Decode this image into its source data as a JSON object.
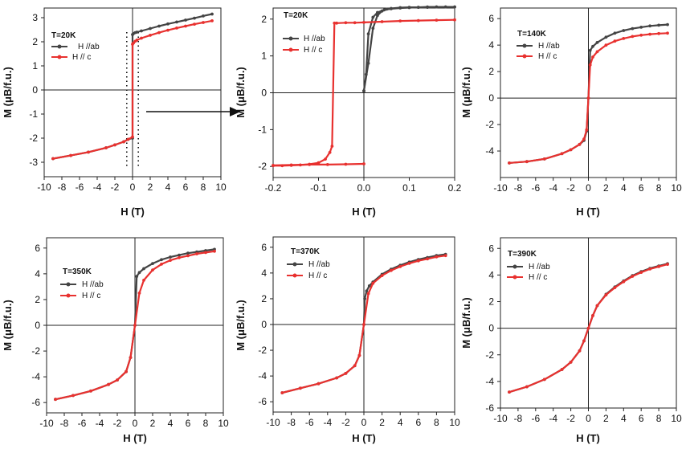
{
  "chart_data": [
    {
      "type": "line",
      "panel": "a",
      "temperature_label": "T=20K",
      "xlabel": "H (T)",
      "ylabel": "M (μB/f.u.)",
      "xlim": [
        -10,
        10
      ],
      "ylim": [
        -3.6,
        3.4
      ],
      "xticks": [
        -10,
        -8,
        -6,
        -4,
        -2,
        0,
        2,
        4,
        6,
        8,
        10
      ],
      "xtick_labels": [
        "-10",
        "-8",
        "-6",
        "-4",
        "-2",
        "0",
        "2",
        "4",
        "6",
        "8",
        "10"
      ],
      "yticks": [
        -3,
        -2,
        -1,
        0,
        1,
        2,
        3
      ],
      "ytick_labels": [
        "-3",
        "-2",
        "-1",
        "0",
        "1",
        "2",
        "3"
      ],
      "legend_position": "top-left",
      "zoom_inset_box": {
        "x_range": [
          -0.2,
          0.2
        ],
        "y_range": [
          -3,
          2.4
        ]
      },
      "series": [
        {
          "name": "H //ab",
          "color": "#444444",
          "x": [
            -9,
            -7,
            -5,
            -3,
            -2,
            -1,
            -0.5,
            0,
            0,
            0.1,
            0.3,
            0.5,
            1,
            2,
            3,
            4,
            5,
            6,
            7,
            8,
            9
          ],
          "y": [
            -2.85,
            -2.72,
            -2.58,
            -2.4,
            -2.28,
            -2.15,
            -2.05,
            -2.0,
            2.3,
            2.34,
            2.38,
            2.4,
            2.45,
            2.55,
            2.65,
            2.74,
            2.82,
            2.9,
            2.98,
            3.07,
            3.15
          ]
        },
        {
          "name": "H // c",
          "color": "#e8312f",
          "x": [
            -9,
            -7,
            -5,
            -3,
            -2,
            -1,
            -0.5,
            0,
            0,
            0.1,
            0.3,
            0.5,
            1,
            2,
            3,
            4,
            5,
            6,
            7,
            8,
            9
          ],
          "y": [
            -2.85,
            -2.72,
            -2.58,
            -2.4,
            -2.28,
            -2.15,
            -2.05,
            -1.95,
            1.9,
            1.95,
            2.02,
            2.07,
            2.15,
            2.27,
            2.38,
            2.48,
            2.57,
            2.65,
            2.73,
            2.8,
            2.87
          ]
        }
      ]
    },
    {
      "type": "line",
      "panel": "b",
      "temperature_label": "T=20K",
      "xlabel": "H (T)",
      "ylabel": "M (μB/f.u.)",
      "xlim": [
        -0.2,
        0.2
      ],
      "ylim": [
        -2.3,
        2.3
      ],
      "xticks": [
        -0.2,
        -0.1,
        0.0,
        0.1,
        0.2
      ],
      "xtick_labels": [
        "-0.2",
        "-0.1",
        "0.0",
        "0.1",
        "0.2"
      ],
      "yticks": [
        -2,
        -1,
        0,
        1,
        2
      ],
      "ytick_labels": [
        "-2",
        "-1",
        "0",
        "1",
        "2"
      ],
      "legend_position": "top-left",
      "series": [
        {
          "name": "H //ab",
          "color": "#444444",
          "x": [
            0,
            0.005,
            0.01,
            0.02,
            0.03,
            0.045,
            0.06,
            0.08,
            0.1,
            0.12,
            0.14,
            0.16,
            0.18,
            0.2
          ],
          "y": [
            0.05,
            0.5,
            1.6,
            2.05,
            2.18,
            2.25,
            2.28,
            2.3,
            2.31,
            2.32,
            2.32,
            2.33,
            2.33,
            2.33
          ]
        },
        {
          "name": "H //ab",
          "color": "#444444",
          "x": [
            0,
            0.01,
            0.02,
            0.03,
            0.04,
            0.05,
            0.06,
            0.08,
            0.1,
            0.12,
            0.14,
            0.16,
            0.18,
            0.2
          ],
          "y": [
            0.05,
            0.8,
            1.75,
            2.1,
            2.22,
            2.27,
            2.29,
            2.31,
            2.32,
            2.32,
            2.33,
            2.33,
            2.33,
            2.33
          ]
        },
        {
          "name": "H // c",
          "color": "#e8312f",
          "x": [
            0.2,
            0.16,
            0.12,
            0.08,
            0.04,
            0.0,
            -0.02,
            -0.04,
            -0.06,
            -0.065,
            -0.07,
            -0.075,
            -0.085,
            -0.1,
            -0.12,
            -0.14,
            -0.16,
            -0.18,
            -0.2
          ],
          "y": [
            1.98,
            1.97,
            1.96,
            1.95,
            1.93,
            1.91,
            1.9,
            1.9,
            1.89,
            1.89,
            -1.45,
            -1.62,
            -1.8,
            -1.9,
            -1.94,
            -1.96,
            -1.97,
            -1.98,
            -1.98
          ]
        },
        {
          "name": "H // c",
          "color": "#e8312f",
          "x": [
            -0.2,
            -0.16,
            -0.12,
            -0.08,
            -0.04,
            0.0
          ],
          "y": [
            -1.97,
            -1.96,
            -1.95,
            -1.95,
            -1.94,
            -1.93
          ]
        }
      ]
    },
    {
      "type": "line",
      "panel": "c",
      "temperature_label": "T=140K",
      "xlabel": "H (T)",
      "ylabel": "M (μB/f.u.)",
      "xlim": [
        -10,
        10
      ],
      "ylim": [
        -6,
        6.8
      ],
      "xticks": [
        -10,
        -8,
        -6,
        -4,
        -2,
        0,
        2,
        4,
        6,
        8,
        10
      ],
      "xtick_labels": [
        "-10",
        "-8",
        "-6",
        "-4",
        "-2",
        "0",
        "2",
        "4",
        "6",
        "8",
        "10"
      ],
      "yticks": [
        -4,
        -2,
        0,
        2,
        4,
        6
      ],
      "ytick_labels": [
        "-4",
        "-2",
        "0",
        "2",
        "4",
        "6"
      ],
      "legend_position": "top-left",
      "series": [
        {
          "name": "H //ab",
          "color": "#444444",
          "x": [
            -9,
            -7,
            -5,
            -3,
            -2,
            -1,
            -0.5,
            -0.2,
            0,
            0.2,
            0.5,
            1,
            2,
            3,
            4,
            5,
            6,
            7,
            8,
            9
          ],
          "y": [
            -4.9,
            -4.8,
            -4.6,
            -4.2,
            -3.9,
            -3.5,
            -3.2,
            -2.5,
            0,
            3.6,
            3.9,
            4.2,
            4.6,
            4.9,
            5.1,
            5.25,
            5.35,
            5.45,
            5.5,
            5.55
          ]
        },
        {
          "name": "H // c",
          "color": "#e8312f",
          "x": [
            -9,
            -7,
            -5,
            -3,
            -2,
            -1,
            -0.5,
            -0.2,
            0,
            0.2,
            0.5,
            1,
            2,
            3,
            4,
            5,
            6,
            7,
            8,
            9
          ],
          "y": [
            -4.9,
            -4.8,
            -4.6,
            -4.2,
            -3.9,
            -3.5,
            -3.1,
            -2.4,
            0,
            2.5,
            3.1,
            3.5,
            4.0,
            4.3,
            4.5,
            4.65,
            4.75,
            4.82,
            4.87,
            4.9
          ]
        }
      ]
    },
    {
      "type": "line",
      "panel": "d",
      "temperature_label": "T=350K",
      "xlabel": "H (T)",
      "ylabel": "M (μB/f.u.)",
      "xlim": [
        -10,
        10
      ],
      "ylim": [
        -6.8,
        6.8
      ],
      "xticks": [
        -10,
        -8,
        -6,
        -4,
        -2,
        0,
        2,
        4,
        6,
        8,
        10
      ],
      "xtick_labels": [
        "-10",
        "-8",
        "-6",
        "-4",
        "-2",
        "0",
        "2",
        "4",
        "6",
        "8",
        "10"
      ],
      "yticks": [
        -6,
        -4,
        -2,
        0,
        2,
        4,
        6
      ],
      "ytick_labels": [
        "-6",
        "-4",
        "-2",
        "0",
        "2",
        "4",
        "6"
      ],
      "legend_position": "middle-left",
      "series": [
        {
          "name": "H //ab",
          "color": "#444444",
          "x": [
            -9,
            -7,
            -5,
            -3,
            -2,
            -1,
            -0.5,
            0,
            0.2,
            0.5,
            1,
            2,
            3,
            4,
            5,
            6,
            7,
            8,
            9
          ],
          "y": [
            -5.75,
            -5.45,
            -5.1,
            -4.6,
            -4.25,
            -3.6,
            -2.5,
            0,
            3.8,
            4.1,
            4.4,
            4.8,
            5.1,
            5.3,
            5.45,
            5.6,
            5.7,
            5.8,
            5.9
          ]
        },
        {
          "name": "H // c",
          "color": "#e8312f",
          "x": [
            -9,
            -7,
            -5,
            -3,
            -2,
            -1,
            -0.5,
            0,
            0.5,
            1,
            2,
            3,
            4,
            5,
            6,
            7,
            8,
            9
          ],
          "y": [
            -5.75,
            -5.45,
            -5.1,
            -4.6,
            -4.25,
            -3.6,
            -2.5,
            0,
            2.5,
            3.5,
            4.3,
            4.75,
            5.05,
            5.25,
            5.4,
            5.55,
            5.65,
            5.75
          ]
        }
      ]
    },
    {
      "type": "line",
      "panel": "e",
      "temperature_label": "T=370K",
      "xlabel": "H (T)",
      "ylabel": "M (μB/f.u.)",
      "xlim": [
        -10,
        10
      ],
      "ylim": [
        -6.8,
        6.8
      ],
      "xticks": [
        -10,
        -8,
        -6,
        -4,
        -2,
        0,
        2,
        4,
        6,
        8,
        10
      ],
      "xtick_labels": [
        "-10",
        "-8",
        "-6",
        "-4",
        "-2",
        "0",
        "2",
        "4",
        "6",
        "8",
        "10"
      ],
      "yticks": [
        -6,
        -4,
        -2,
        0,
        2,
        4,
        6
      ],
      "ytick_labels": [
        "-6",
        "-4",
        "-2",
        "0",
        "2",
        "4",
        "6"
      ],
      "legend_position": "top-left",
      "series": [
        {
          "name": "H //ab",
          "color": "#444444",
          "x": [
            -9,
            -7,
            -5,
            -3,
            -2,
            -1,
            -0.5,
            0,
            0.1,
            0.3,
            0.6,
            1,
            2,
            3,
            4,
            5,
            6,
            7,
            8,
            9
          ],
          "y": [
            -5.3,
            -4.95,
            -4.6,
            -4.15,
            -3.8,
            -3.2,
            -2.4,
            0,
            2.0,
            2.6,
            3.0,
            3.3,
            3.9,
            4.3,
            4.6,
            4.85,
            5.05,
            5.2,
            5.35,
            5.45
          ]
        },
        {
          "name": "H // c",
          "color": "#e8312f",
          "x": [
            -9,
            -7,
            -5,
            -3,
            -2,
            -1,
            -0.5,
            0,
            0.5,
            1,
            2,
            3,
            4,
            5,
            6,
            7,
            8,
            9
          ],
          "y": [
            -5.3,
            -4.95,
            -4.6,
            -4.15,
            -3.8,
            -3.2,
            -2.4,
            0,
            2.4,
            3.2,
            3.8,
            4.2,
            4.5,
            4.75,
            4.95,
            5.1,
            5.25,
            5.35
          ]
        }
      ]
    },
    {
      "type": "line",
      "panel": "f",
      "temperature_label": "T=390K",
      "xlabel": "H (T)",
      "ylabel": "M (μB/f.u.)",
      "xlim": [
        -10,
        10
      ],
      "ylim": [
        -6,
        6.8
      ],
      "xticks": [
        -10,
        -8,
        -6,
        -4,
        -2,
        0,
        2,
        4,
        6,
        8,
        10
      ],
      "xtick_labels": [
        "-10",
        "-8",
        "-6",
        "-4",
        "-2",
        "0",
        "2",
        "4",
        "6",
        "8",
        "10"
      ],
      "yticks": [
        -6,
        -4,
        -2,
        0,
        2,
        4,
        6
      ],
      "ytick_labels": [
        "-6",
        "-4",
        "-2",
        "0",
        "2",
        "4",
        "6"
      ],
      "legend_position": "top-left",
      "series": [
        {
          "name": "H //ab",
          "color": "#444444",
          "x": [
            -9,
            -7,
            -5,
            -3,
            -2,
            -1,
            -0.5,
            0,
            0.5,
            1,
            2,
            3,
            4,
            5,
            6,
            7,
            8,
            9
          ],
          "y": [
            -4.8,
            -4.4,
            -3.85,
            -3.1,
            -2.55,
            -1.7,
            -0.95,
            0,
            0.95,
            1.7,
            2.55,
            3.1,
            3.55,
            3.95,
            4.25,
            4.5,
            4.68,
            4.85
          ]
        },
        {
          "name": "H // c",
          "color": "#e8312f",
          "x": [
            -9,
            -7,
            -5,
            -3,
            -2,
            -1,
            -0.5,
            0,
            0.5,
            1,
            2,
            3,
            4,
            5,
            6,
            7,
            8,
            9
          ],
          "y": [
            -4.8,
            -4.4,
            -3.85,
            -3.1,
            -2.55,
            -1.7,
            -0.95,
            0,
            0.95,
            1.7,
            2.5,
            3.05,
            3.5,
            3.9,
            4.2,
            4.45,
            4.63,
            4.8
          ]
        }
      ]
    }
  ]
}
